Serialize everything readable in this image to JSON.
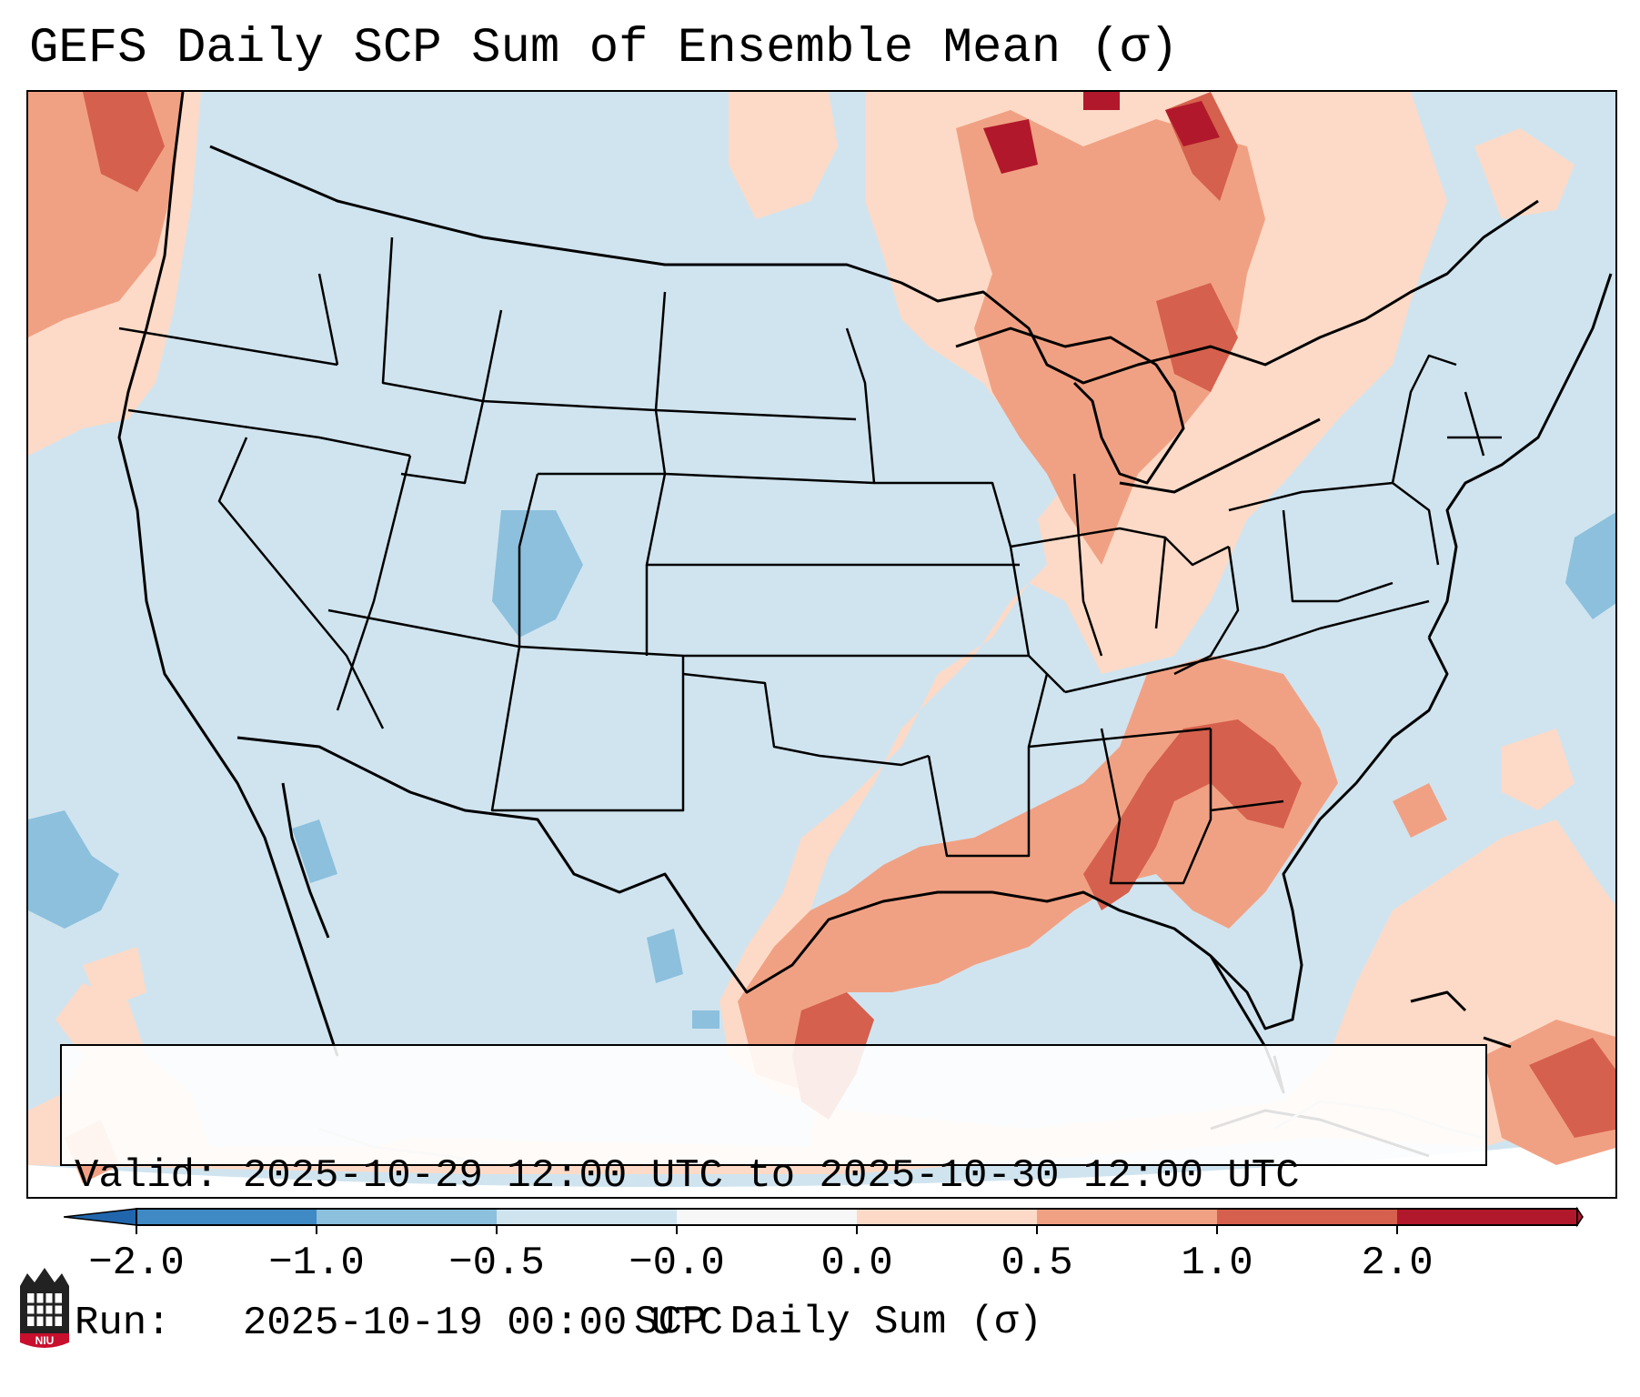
{
  "header": {
    "title": "GEFS Daily SCP Sum of Ensemble Mean (σ)"
  },
  "info_box": {
    "valid_line": "Valid: 2025-10-29 12:00 UTC to 2025-10-30 12:00 UTC",
    "run_line": "Run:   2025-10-19 00:00 UTC"
  },
  "colorbar": {
    "label": "SCP Daily Sum (σ)",
    "ticks": [
      "−2.0",
      "−1.0",
      "−0.5",
      "−0.0",
      "0.0",
      "0.5",
      "1.0",
      "2.0"
    ],
    "bin_colors": [
      "#3f8ac4",
      "#8cc0dd",
      "#d0e4ef",
      "#f7f7f7",
      "#fcdac7",
      "#f1a183",
      "#d5604d",
      "#b2182b"
    ],
    "extend_low_color": "#2166ac",
    "extend_high_color": "#b2182b"
  },
  "logo": {
    "text": "NIU"
  },
  "colors": {
    "ocean_land_background": "#d0e4ef",
    "light_red": "#fcdac7",
    "mid_red": "#f1a183",
    "dark_red": "#d5604d",
    "deep_red": "#b2182b",
    "light_blue": "#8cc0dd",
    "boundary_line": "#000000"
  }
}
